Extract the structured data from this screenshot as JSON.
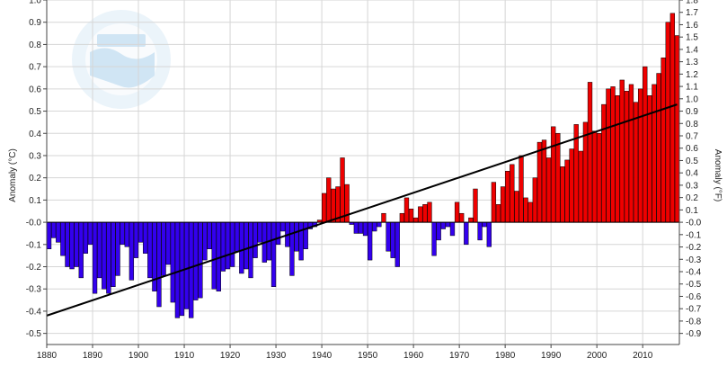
{
  "chart_data": {
    "type": "bar",
    "title": "",
    "ylabel_left": "Anomaly (°C)",
    "ylabel_right": "Anomaly (°F)",
    "xlim": [
      1880,
      2017
    ],
    "ylim": [
      -0.55,
      1.0
    ],
    "grid": true,
    "legend": "none",
    "x_ticks": [
      "1880",
      "1890",
      "1900",
      "1910",
      "1920",
      "1930",
      "1940",
      "1950",
      "1960",
      "1970",
      "1980",
      "1990",
      "2000",
      "2010"
    ],
    "y_ticks_left": [
      "1.0",
      "0.9",
      "0.8",
      "0.7",
      "0.6",
      "0.5",
      "0.4",
      "0.3",
      "0.2",
      "0.1",
      "-0.0",
      "-0.1",
      "-0.2",
      "-0.3",
      "-0.4",
      "-0.5"
    ],
    "y_ticks_right": [
      "1.8",
      "1.7",
      "1.6",
      "1.5",
      "1.4",
      "1.3",
      "1.2",
      "1.1",
      "1.0",
      "0.9",
      "0.8",
      "0.7",
      "0.6",
      "0.5",
      "0.4",
      "0.3",
      "0.2",
      "0.1",
      "-0.0",
      "-0.1",
      "-0.2",
      "-0.3",
      "-0.4",
      "-0.5",
      "-0.6",
      "-0.7",
      "-0.8",
      "-0.9"
    ],
    "positive_color": "#ee0000",
    "negative_color": "#3300ee",
    "trend": {
      "x": [
        1880,
        2017
      ],
      "y": [
        -0.42,
        0.53
      ],
      "color": "#000000"
    },
    "years": [
      1880,
      1881,
      1882,
      1883,
      1884,
      1885,
      1886,
      1887,
      1888,
      1889,
      1890,
      1891,
      1892,
      1893,
      1894,
      1895,
      1896,
      1897,
      1898,
      1899,
      1900,
      1901,
      1902,
      1903,
      1904,
      1905,
      1906,
      1907,
      1908,
      1909,
      1910,
      1911,
      1912,
      1913,
      1914,
      1915,
      1916,
      1917,
      1918,
      1919,
      1920,
      1921,
      1922,
      1923,
      1924,
      1925,
      1926,
      1927,
      1928,
      1929,
      1930,
      1931,
      1932,
      1933,
      1934,
      1935,
      1936,
      1937,
      1938,
      1939,
      1940,
      1941,
      1942,
      1943,
      1944,
      1945,
      1946,
      1947,
      1948,
      1949,
      1950,
      1951,
      1952,
      1953,
      1954,
      1955,
      1956,
      1957,
      1958,
      1959,
      1960,
      1961,
      1962,
      1963,
      1964,
      1965,
      1966,
      1967,
      1968,
      1969,
      1970,
      1971,
      1972,
      1973,
      1974,
      1975,
      1976,
      1977,
      1978,
      1979,
      1980,
      1981,
      1982,
      1983,
      1984,
      1985,
      1986,
      1987,
      1988,
      1989,
      1990,
      1991,
      1992,
      1993,
      1994,
      1995,
      1996,
      1997,
      1998,
      1999,
      2000,
      2001,
      2002,
      2003,
      2004,
      2005,
      2006,
      2007,
      2008,
      2009,
      2010,
      2011,
      2012,
      2013,
      2014,
      2015,
      2016,
      2017
    ],
    "values": [
      -0.12,
      -0.07,
      -0.09,
      -0.15,
      -0.2,
      -0.21,
      -0.2,
      -0.25,
      -0.14,
      -0.1,
      -0.32,
      -0.25,
      -0.3,
      -0.32,
      -0.29,
      -0.24,
      -0.1,
      -0.11,
      -0.26,
      -0.16,
      -0.09,
      -0.14,
      -0.25,
      -0.31,
      -0.38,
      -0.24,
      -0.19,
      -0.36,
      -0.43,
      -0.42,
      -0.39,
      -0.43,
      -0.35,
      -0.34,
      -0.17,
      -0.12,
      -0.3,
      -0.31,
      -0.22,
      -0.21,
      -0.2,
      -0.13,
      -0.23,
      -0.21,
      -0.25,
      -0.16,
      -0.09,
      -0.18,
      -0.17,
      -0.29,
      -0.1,
      -0.04,
      -0.11,
      -0.24,
      -0.13,
      -0.17,
      -0.12,
      -0.03,
      -0.02,
      0.01,
      0.13,
      0.2,
      0.15,
      0.16,
      0.29,
      0.17,
      -0.01,
      -0.05,
      -0.05,
      -0.06,
      -0.17,
      -0.04,
      -0.02,
      0.04,
      -0.13,
      -0.16,
      -0.2,
      0.04,
      0.11,
      0.06,
      0.02,
      0.07,
      0.08,
      0.09,
      -0.15,
      -0.08,
      -0.03,
      -0.02,
      -0.06,
      0.09,
      0.04,
      -0.1,
      0.02,
      0.15,
      -0.08,
      -0.02,
      -0.11,
      0.18,
      0.08,
      0.16,
      0.23,
      0.26,
      0.14,
      0.3,
      0.11,
      0.09,
      0.2,
      0.36,
      0.37,
      0.29,
      0.43,
      0.4,
      0.25,
      0.28,
      0.33,
      0.44,
      0.32,
      0.45,
      0.63,
      0.41,
      0.4,
      0.53,
      0.6,
      0.61,
      0.57,
      0.64,
      0.59,
      0.62,
      0.54,
      0.6,
      0.7,
      0.57,
      0.62,
      0.67,
      0.74,
      0.9,
      0.94,
      0.84
    ]
  }
}
